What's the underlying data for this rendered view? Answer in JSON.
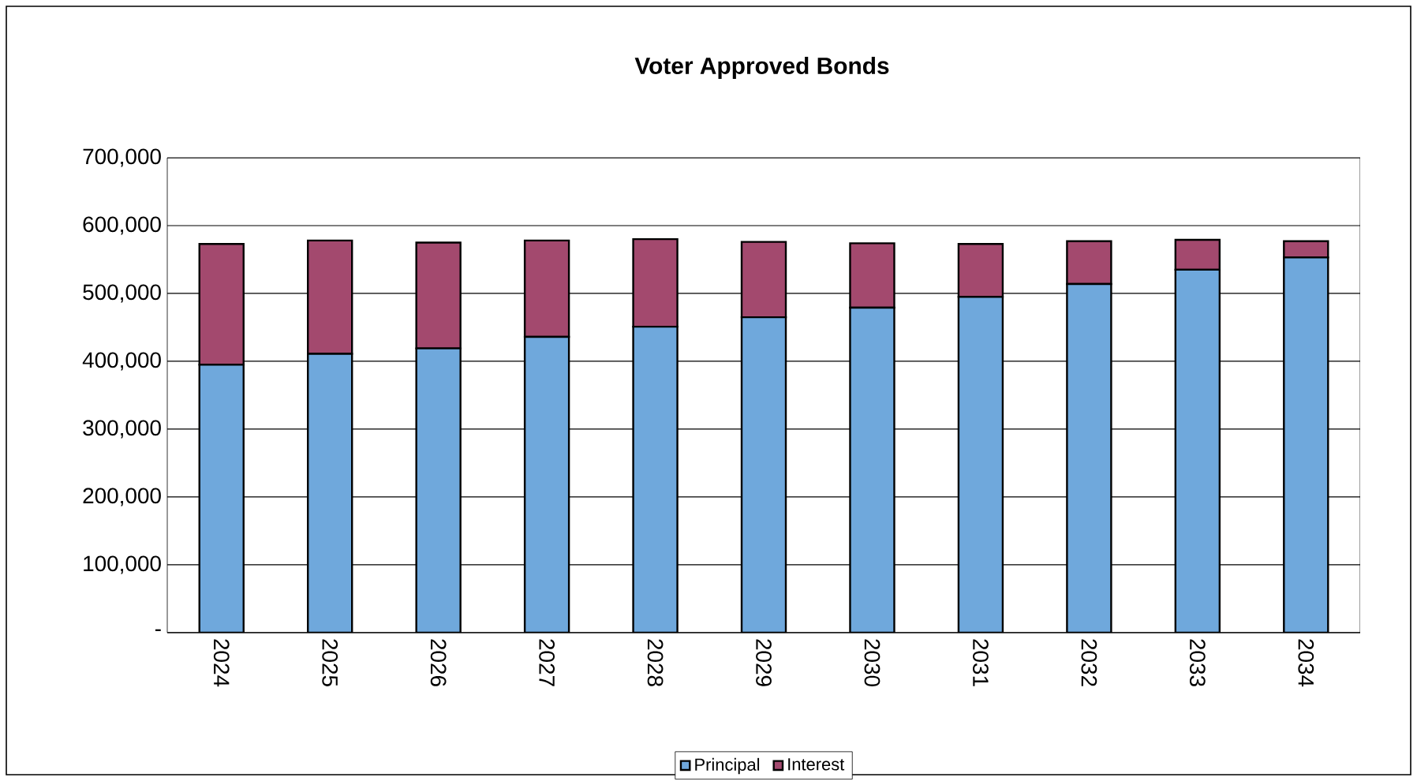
{
  "chart_data": {
    "type": "bar",
    "stacked": true,
    "title": "Voter Approved Bonds",
    "categories": [
      "2024",
      "2025",
      "2026",
      "2027",
      "2028",
      "2029",
      "2030",
      "2031",
      "2032",
      "2033",
      "2034"
    ],
    "series": [
      {
        "name": "Principal",
        "color": "#6fa8dc",
        "values": [
          395000,
          411000,
          419000,
          436000,
          451000,
          465000,
          479000,
          495000,
          514000,
          535000,
          553000
        ]
      },
      {
        "name": "Interest",
        "color": "#a3496e",
        "values": [
          178000,
          167000,
          156000,
          142000,
          129000,
          111000,
          95000,
          78000,
          63000,
          44000,
          24000
        ]
      }
    ],
    "ylim": [
      0,
      700000
    ],
    "yticks": [
      {
        "value": 0,
        "label": "-"
      },
      {
        "value": 100000,
        "label": "100,000"
      },
      {
        "value": 200000,
        "label": "200,000"
      },
      {
        "value": 300000,
        "label": "300,000"
      },
      {
        "value": 400000,
        "label": "400,000"
      },
      {
        "value": 500000,
        "label": "500,000"
      },
      {
        "value": 600000,
        "label": "600,000"
      },
      {
        "value": 700000,
        "label": "700,000"
      }
    ],
    "grid": "y",
    "legend": "bottom"
  }
}
